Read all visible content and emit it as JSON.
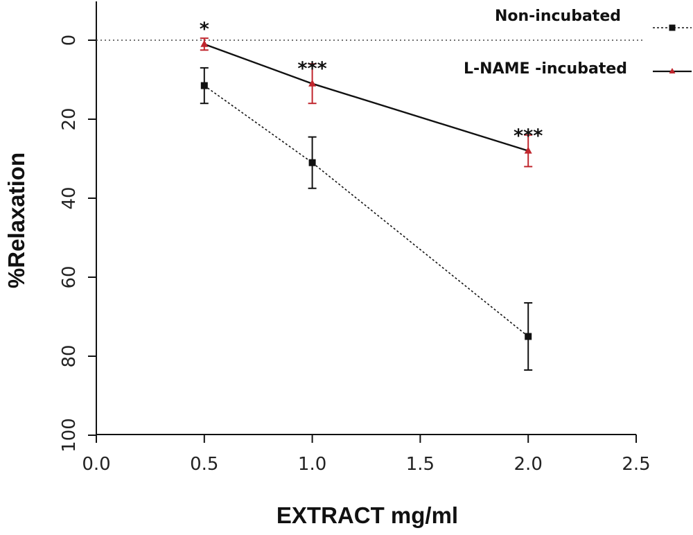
{
  "chart_data": {
    "type": "line",
    "xlabel": "EXTRACT mg/ml",
    "ylabel": "%Relaxation",
    "xlim": [
      0.0,
      2.5
    ],
    "ylim": [
      100,
      -10
    ],
    "y_inverted": true,
    "x_ticks": [
      "0.0",
      "0.5",
      "1.0",
      "1.5",
      "2.0",
      "2.5"
    ],
    "y_ticks": [
      "0",
      "20",
      "40",
      "60",
      "80",
      "100"
    ],
    "reference_line": {
      "y": 0,
      "style": "dotted"
    },
    "grid": false,
    "legend_position": "top-right",
    "series": [
      {
        "name": "Non-incubated",
        "color": "#111111",
        "errorbar_color": "#111111",
        "marker": "square",
        "line_style": "dotted",
        "x": [
          0.5,
          1.0,
          2.0
        ],
        "y": [
          11.5,
          31,
          75
        ],
        "err": [
          4.5,
          6.5,
          8.5
        ]
      },
      {
        "name": "L-NAME -incubated",
        "color": "#111111",
        "errorbar_color": "#c0262d",
        "marker_color": "#c0262d",
        "marker": "triangle",
        "line_style": "solid",
        "x": [
          0.5,
          1.0,
          2.0
        ],
        "y": [
          1,
          11,
          28
        ],
        "err": [
          1.5,
          5,
          4
        ]
      }
    ],
    "annotations": [
      {
        "text": "*",
        "x": 0.5,
        "y": -3
      },
      {
        "text": "***",
        "x": 1.0,
        "y": 7
      },
      {
        "text": "***",
        "x": 2.0,
        "y": 24
      }
    ]
  }
}
